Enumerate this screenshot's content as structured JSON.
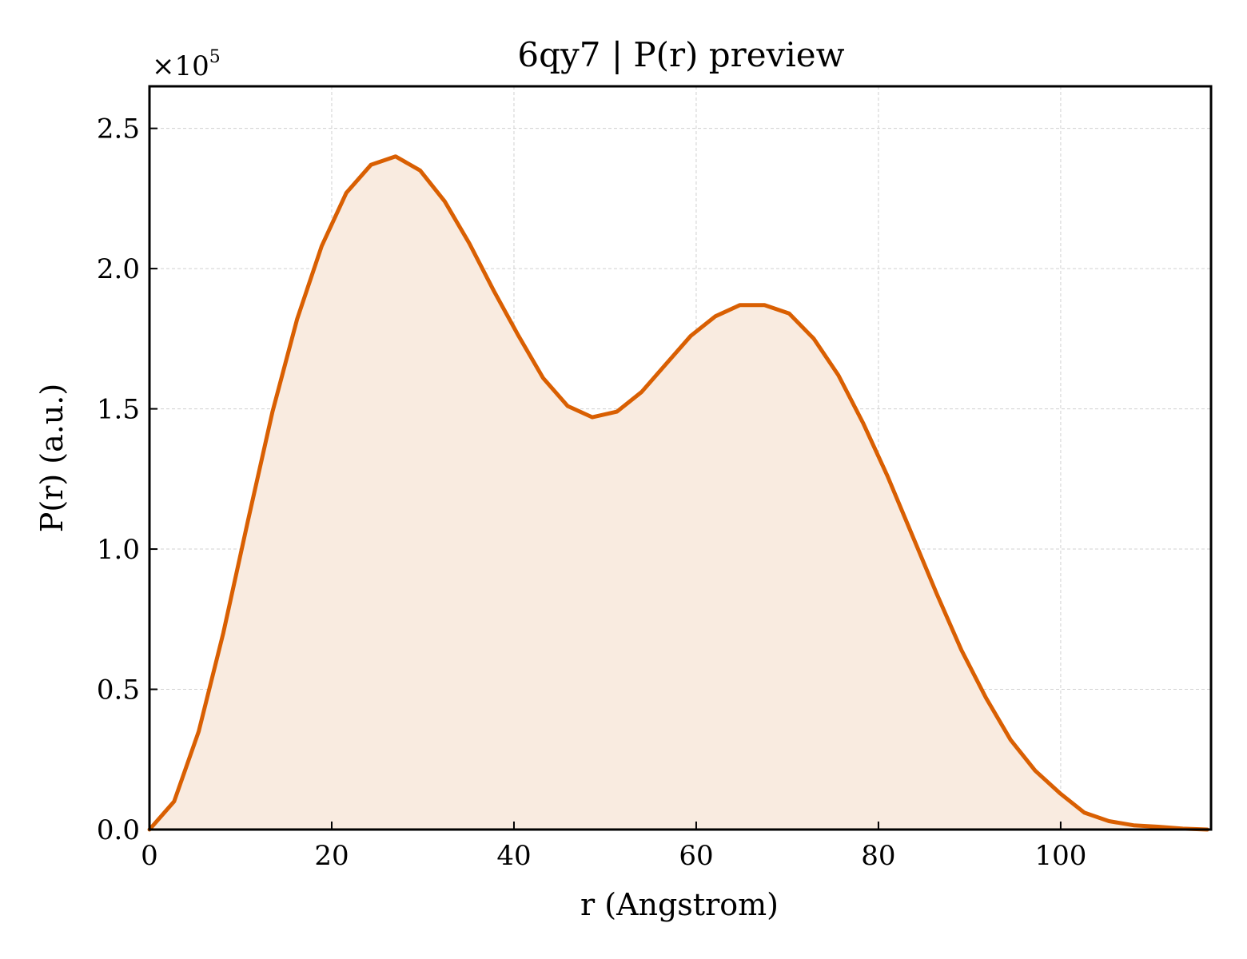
{
  "chart_data": {
    "type": "line",
    "title": "6qy7 | P(r) preview",
    "xlabel": "r (Angstrom)",
    "ylabel": "P(r) (a.u.)",
    "y_multiplier_text": "×10",
    "y_multiplier_exponent": "5",
    "xlim": [
      0,
      116.5
    ],
    "ylim": [
      0,
      2.65
    ],
    "x_ticks": [
      0,
      20,
      40,
      60,
      80,
      100
    ],
    "y_ticks": [
      0.0,
      0.5,
      1.0,
      1.5,
      2.0,
      2.5
    ],
    "x_tick_labels": [
      "0",
      "20",
      "40",
      "60",
      "80",
      "100"
    ],
    "y_tick_labels": [
      "0.0",
      "0.5",
      "1.0",
      "1.5",
      "2.0",
      "2.5"
    ],
    "grid": true,
    "fill_under": true,
    "colors": {
      "line": "#d95f02",
      "fill": "#f9ebe0"
    },
    "series": [
      {
        "x": [
          0,
          2.7,
          5.4,
          8.1,
          10.8,
          13.5,
          16.2,
          18.9,
          21.6,
          24.3,
          27.0,
          29.7,
          32.4,
          35.1,
          37.8,
          40.5,
          43.2,
          45.9,
          48.6,
          51.3,
          54.0,
          56.7,
          59.4,
          62.1,
          64.8,
          67.5,
          70.2,
          72.9,
          75.6,
          78.3,
          81.0,
          83.7,
          86.4,
          89.1,
          91.8,
          94.5,
          97.2,
          99.9,
          102.6,
          105.3,
          108.0,
          110.7,
          113.4,
          116.1
        ],
        "values": [
          0.0,
          0.1,
          0.35,
          0.7,
          1.1,
          1.49,
          1.82,
          2.08,
          2.27,
          2.37,
          2.4,
          2.35,
          2.24,
          2.09,
          1.92,
          1.76,
          1.61,
          1.51,
          1.47,
          1.49,
          1.56,
          1.66,
          1.76,
          1.83,
          1.87,
          1.87,
          1.84,
          1.75,
          1.62,
          1.45,
          1.26,
          1.05,
          0.84,
          0.64,
          0.47,
          0.32,
          0.21,
          0.13,
          0.06,
          0.03,
          0.015,
          0.01,
          0.003,
          0.0
        ]
      }
    ]
  }
}
